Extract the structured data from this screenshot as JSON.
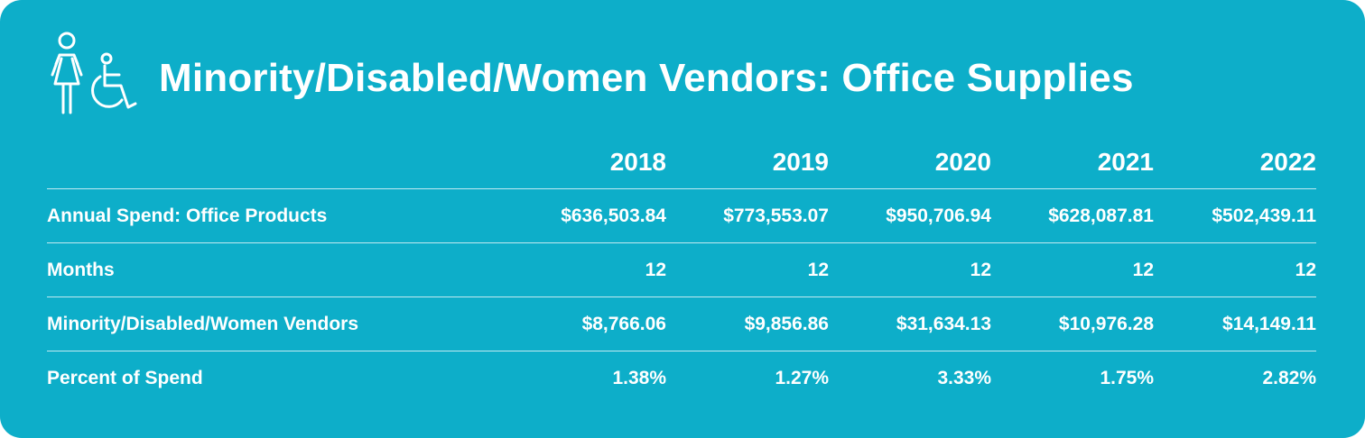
{
  "title": "Minority/Disabled/Women Vendors: Office Supplies",
  "icons": [
    "woman-icon",
    "wheelchair-icon"
  ],
  "colors": {
    "background": "#0daec9",
    "text": "#ffffff"
  },
  "table": {
    "columns": [
      "2018",
      "2019",
      "2020",
      "2021",
      "2022"
    ],
    "rows": [
      {
        "label": "Annual Spend: Office Products",
        "values": [
          "$636,503.84",
          "$773,553.07",
          "$950,706.94",
          "$628,087.81",
          "$502,439.11"
        ]
      },
      {
        "label": "Months",
        "values": [
          "12",
          "12",
          "12",
          "12",
          "12"
        ]
      },
      {
        "label": "Minority/Disabled/Women Vendors",
        "values": [
          "$8,766.06",
          "$9,856.86",
          "$31,634.13",
          "$10,976.28",
          "$14,149.11"
        ]
      },
      {
        "label": "Percent of Spend",
        "values": [
          "1.38%",
          "1.27%",
          "3.33%",
          "1.75%",
          "2.82%"
        ]
      }
    ]
  }
}
